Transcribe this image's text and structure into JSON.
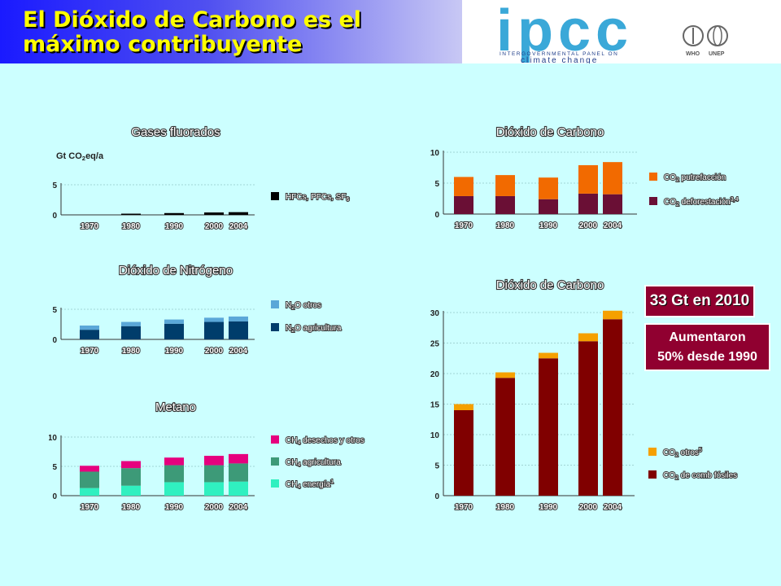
{
  "slide": {
    "title": "El Dióxido de Carbono es el\nmáximo contribuyente",
    "logo": {
      "text": "ipcc",
      "subtitle_1": "INTERGOVERNMENTAL PANEL ON",
      "subtitle_2": "climate change",
      "partner_1": "WHO",
      "partner_2": "UNEP"
    }
  },
  "callouts": {
    "total": "33 Gt en 2010",
    "increase": "Aumentaron\n50% desde 1990"
  },
  "colors": {
    "background": "#ccffff",
    "title_text": "#ffff00",
    "callout": "#900030",
    "fgas": "#000000",
    "n2o_other": "#5aa7d8",
    "n2o_agri": "#003d6b",
    "ch4_waste": "#e6007e",
    "ch4_agri": "#3d9a78",
    "ch4_energy": "#30f0c0",
    "co2_decay": "#f26a00",
    "co2_deforest": "#6a0f35",
    "co2_other": "#f5a000",
    "co2_fossil": "#800000"
  },
  "chart_data": [
    {
      "id": "fgas",
      "type": "bar",
      "title": "Gases fluorados",
      "ylabel": "Gt CO2eq/a",
      "categories": [
        "1970",
        "1980",
        "1990",
        "2000",
        "2004"
      ],
      "ylim": [
        0,
        5
      ],
      "yticks": [
        0,
        5
      ],
      "series": [
        {
          "name": "HFCs, PFCs, SF6",
          "color": "#000000",
          "values": [
            0,
            0.2,
            0.3,
            0.4,
            0.45
          ]
        }
      ]
    },
    {
      "id": "n2o",
      "type": "bar",
      "title": "Dióxido de Nitrógeno",
      "categories": [
        "1970",
        "1980",
        "1990",
        "2000",
        "2004"
      ],
      "ylim": [
        0,
        5
      ],
      "yticks": [
        0,
        5
      ],
      "series": [
        {
          "name": "N2O agricultura",
          "color": "#003d6b",
          "values": [
            1.6,
            2.2,
            2.6,
            2.9,
            3.0
          ]
        },
        {
          "name": "N2O otros",
          "color": "#5aa7d8",
          "values": [
            0.7,
            0.7,
            0.7,
            0.7,
            0.8
          ]
        }
      ]
    },
    {
      "id": "ch4",
      "type": "bar",
      "title": "Metano",
      "categories": [
        "1970",
        "1980",
        "1990",
        "2000",
        "2004"
      ],
      "ylim": [
        0,
        10
      ],
      "yticks": [
        0,
        5,
        10
      ],
      "series": [
        {
          "name": "CH4 energía1",
          "color": "#30f0c0",
          "values": [
            1.3,
            1.7,
            2.3,
            2.3,
            2.4
          ]
        },
        {
          "name": "CH4 agricultura",
          "color": "#3d9a78",
          "values": [
            2.8,
            3.0,
            2.9,
            2.9,
            3.1
          ]
        },
        {
          "name": "CH4 desechos y otros",
          "color": "#e6007e",
          "values": [
            1.0,
            1.2,
            1.3,
            1.6,
            1.6
          ]
        }
      ]
    },
    {
      "id": "co2-land",
      "type": "bar",
      "title": "Dióxido de Carbono",
      "categories": [
        "1970",
        "1980",
        "1990",
        "2000",
        "2004"
      ],
      "ylim": [
        0,
        10
      ],
      "yticks": [
        0,
        5,
        10
      ],
      "series": [
        {
          "name": "CO2 deforestación3,4",
          "color": "#6a0f35",
          "values": [
            2.9,
            2.9,
            2.4,
            3.3,
            3.2
          ]
        },
        {
          "name": "CO2 putrefacción",
          "color": "#f26a00",
          "values": [
            3.1,
            3.4,
            3.5,
            4.6,
            5.2
          ]
        }
      ]
    },
    {
      "id": "co2-fossil",
      "type": "bar",
      "title": "Dióxido de Carbono",
      "categories": [
        "1970",
        "1980",
        "1990",
        "2000",
        "2004"
      ],
      "ylim": [
        0,
        30
      ],
      "yticks": [
        0,
        5,
        10,
        15,
        20,
        25,
        30
      ],
      "series": [
        {
          "name": "CO2 de comb fósiles",
          "color": "#800000",
          "values": [
            14,
            19.3,
            22.5,
            25.3,
            28.9
          ]
        },
        {
          "name": "CO2 otros5",
          "color": "#f5a000",
          "values": [
            1.0,
            0.9,
            0.9,
            1.3,
            1.4
          ]
        }
      ]
    }
  ]
}
